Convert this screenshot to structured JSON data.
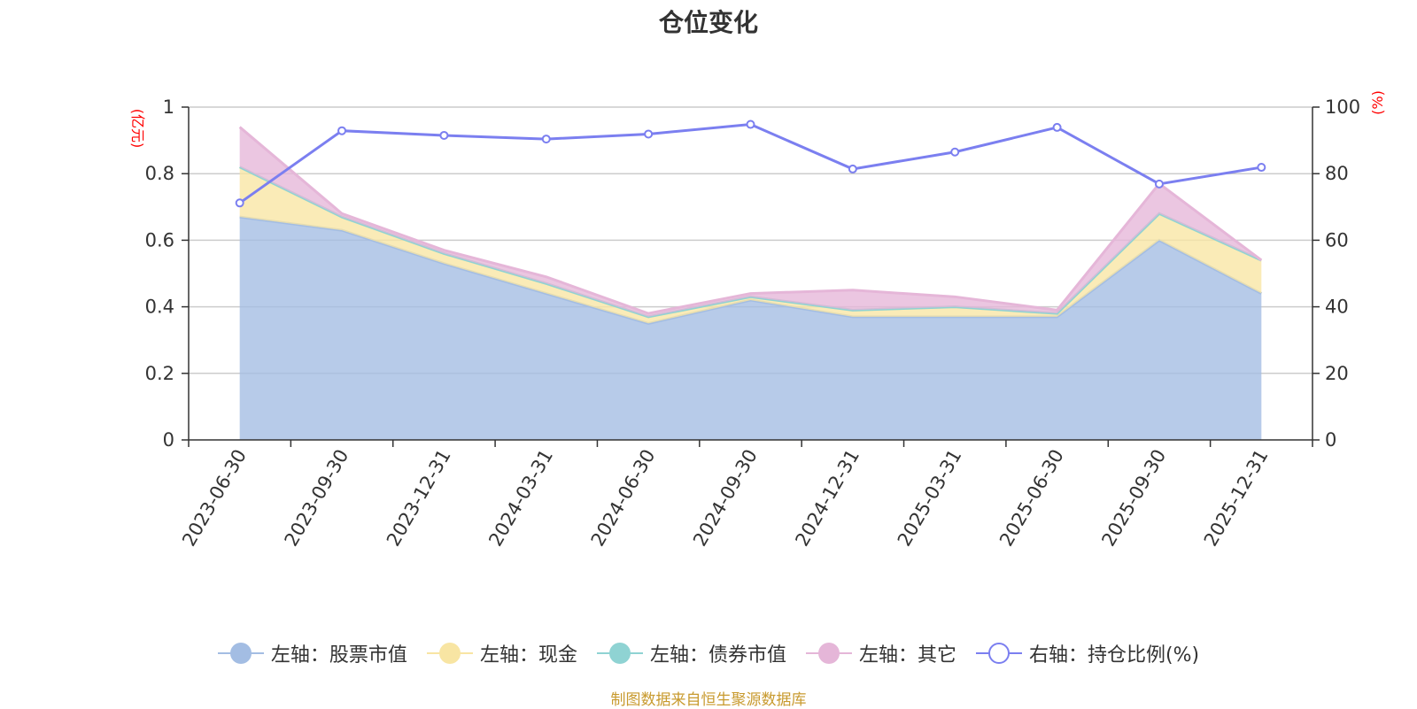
{
  "colors": {
    "stock": "#a3bde3",
    "cash": "#f8e5a3",
    "bond": "#8fd3d3",
    "other": "#e5b6d8",
    "ratio": "#7b7ff0",
    "unit": "#ff0000",
    "source": "#c89a2e"
  },
  "source_text": "制图数据来自恒生聚源数据库",
  "chart_data": {
    "type": "area",
    "title": "仓位变化",
    "left_axis_unit": "(亿元)",
    "right_axis_unit": "(%)",
    "ylim_left": [
      0,
      1
    ],
    "yticks_left": [
      "0",
      "0.2",
      "0.4",
      "0.6",
      "0.8",
      "1"
    ],
    "ylim_right": [
      0,
      100
    ],
    "yticks_right": [
      "0",
      "20",
      "40",
      "60",
      "80",
      "100"
    ],
    "grid": true,
    "legend_position": "bottom",
    "categories": [
      "2023-06-30",
      "2023-09-30",
      "2023-12-31",
      "2024-03-31",
      "2024-06-30",
      "2024-09-30",
      "2024-12-31",
      "2025-03-31",
      "2025-06-30",
      "2025-09-30",
      "2025-12-31"
    ],
    "series": [
      {
        "name": "左轴：股票市值",
        "axis": "left",
        "kind": "stacked-area",
        "values": [
          0.67,
          0.63,
          0.53,
          0.44,
          0.35,
          0.42,
          0.37,
          0.37,
          0.37,
          0.6,
          0.44
        ]
      },
      {
        "name": "左轴：现金",
        "axis": "left",
        "kind": "stacked-area",
        "values": [
          0.15,
          0.04,
          0.03,
          0.03,
          0.02,
          0.01,
          0.02,
          0.03,
          0.01,
          0.08,
          0.1
        ]
      },
      {
        "name": "左轴：债券市值",
        "axis": "left",
        "kind": "stacked-area",
        "values": [
          0,
          0,
          0,
          0,
          0,
          0,
          0,
          0,
          0,
          0,
          0
        ]
      },
      {
        "name": "左轴：其它",
        "axis": "left",
        "kind": "stacked-area",
        "values": [
          0.12,
          0.01,
          0.01,
          0.02,
          0.01,
          0.01,
          0.06,
          0.03,
          0.01,
          0.09,
          0.0
        ]
      },
      {
        "name": "右轴：持仓比例(%)",
        "axis": "right",
        "kind": "line",
        "values": [
          71.2,
          92.9,
          91.5,
          90.4,
          91.9,
          94.8,
          81.4,
          86.5,
          93.9,
          76.9,
          81.9
        ]
      }
    ]
  }
}
